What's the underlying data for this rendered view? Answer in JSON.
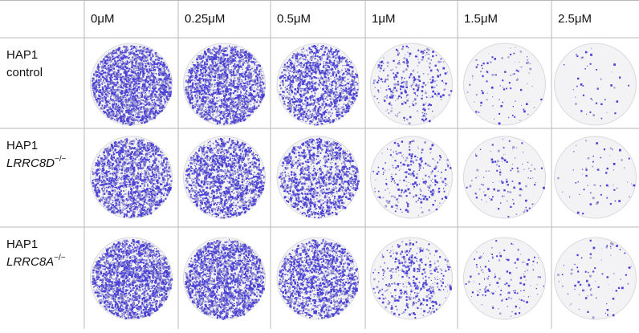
{
  "header": {
    "columns": [
      "0μM",
      "0.25μM",
      "0.5μM",
      "1μM",
      "1.5μM",
      "2.5μM"
    ]
  },
  "rows": [
    {
      "name": "HAP1",
      "label": "control"
    },
    {
      "name": "HAP1",
      "gene": "LRRC8D",
      "superscript": "−/−"
    },
    {
      "name": "HAP1",
      "gene": "LRRC8A",
      "superscript": "−/−"
    }
  ]
}
